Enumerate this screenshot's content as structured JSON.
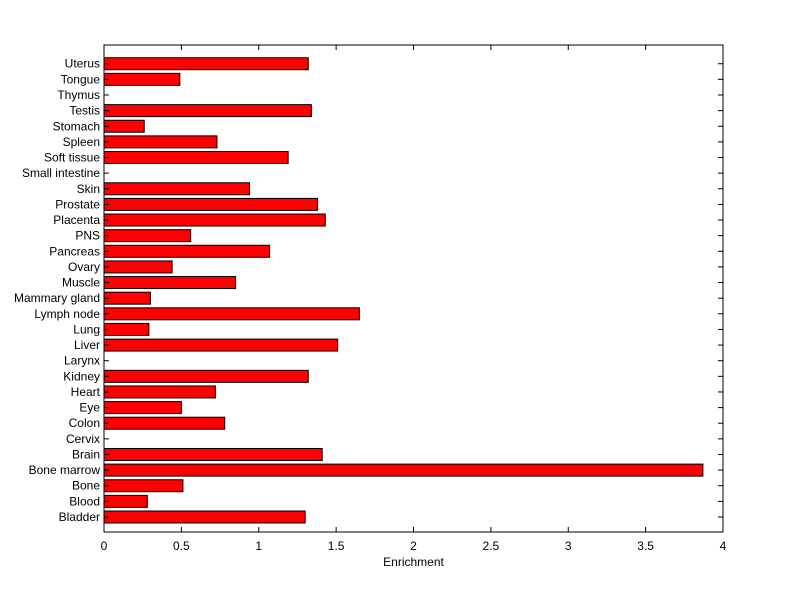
{
  "chart_data": {
    "type": "bar",
    "orientation": "horizontal",
    "title": "",
    "xlabel": "Enrichment",
    "ylabel": "",
    "xlim": [
      0,
      4
    ],
    "xticks": [
      "0",
      "0.5",
      "1",
      "1.5",
      "2",
      "2.5",
      "3",
      "3.5",
      "4"
    ],
    "grid": false,
    "legend": "none",
    "bar_color": "#ff0000",
    "categories": [
      "Bladder",
      "Blood",
      "Bone",
      "Bone marrow",
      "Brain",
      "Cervix",
      "Colon",
      "Eye",
      "Heart",
      "Kidney",
      "Larynx",
      "Liver",
      "Lung",
      "Lymph node",
      "Mammary gland",
      "Muscle",
      "Ovary",
      "Pancreas",
      "PNS",
      "Placenta",
      "Prostate",
      "Skin",
      "Small intestine",
      "Soft tissue",
      "Spleen",
      "Stomach",
      "Testis",
      "Thymus",
      "Tongue",
      "Uterus"
    ],
    "values": [
      1.3,
      0.28,
      0.51,
      3.87,
      1.41,
      0,
      0.78,
      0.5,
      0.72,
      1.32,
      0,
      1.51,
      0.29,
      1.65,
      0.3,
      0.85,
      0.44,
      1.07,
      0.56,
      1.43,
      1.38,
      0.94,
      0,
      1.19,
      0.73,
      0.26,
      1.34,
      0,
      0.49,
      1.32
    ]
  }
}
